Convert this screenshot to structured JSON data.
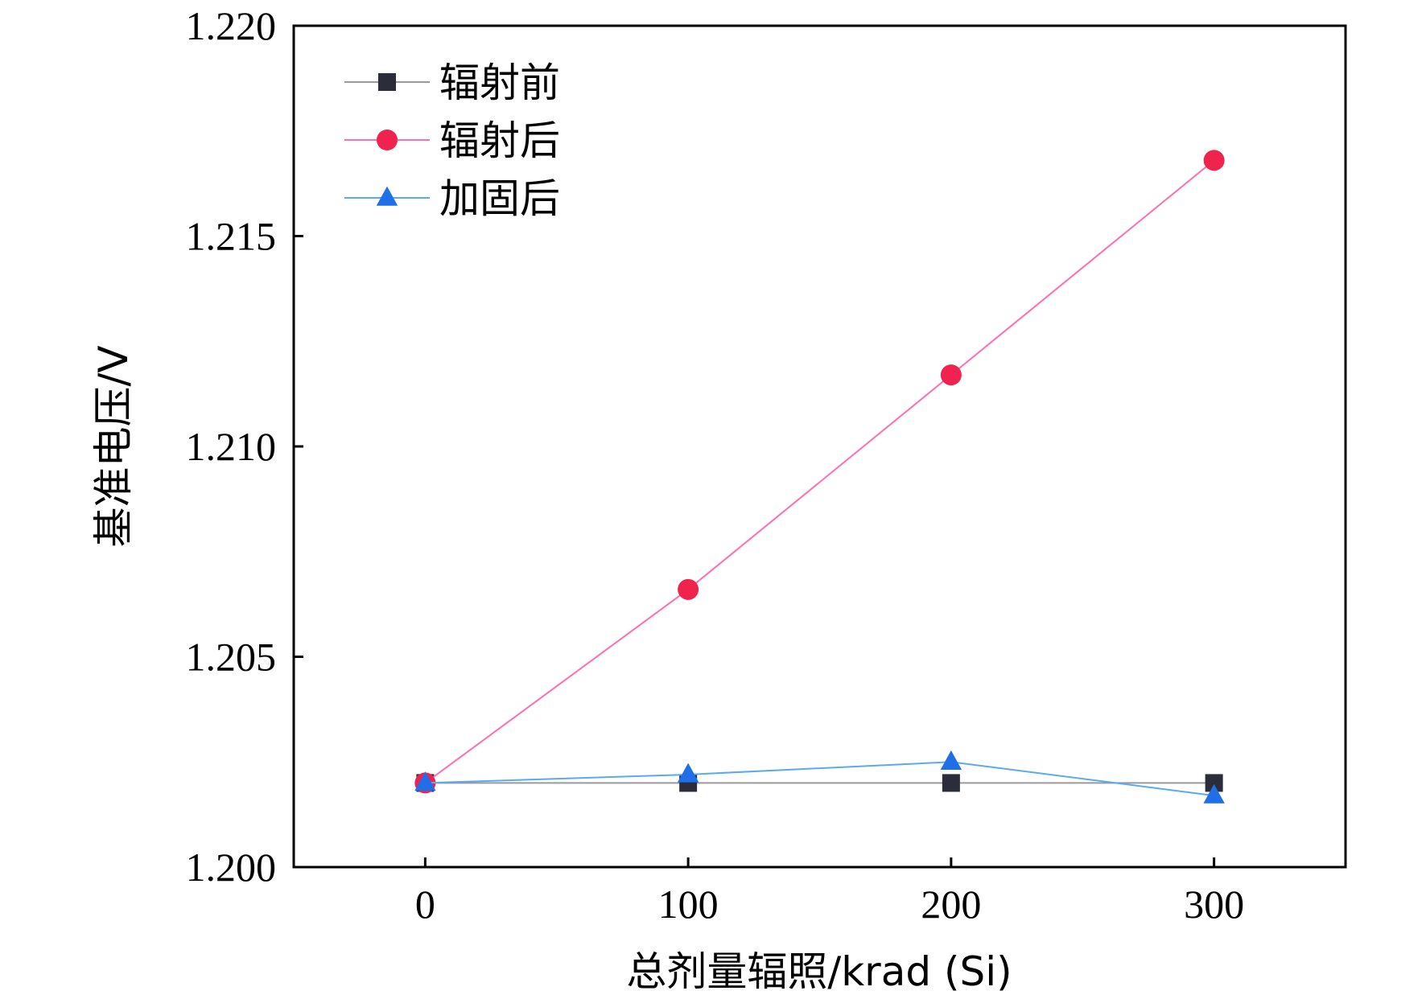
{
  "chart_data": {
    "type": "line",
    "title": "",
    "xlabel": "总剂量辐照/krad (Si)",
    "ylabel": "基准电压/V",
    "xlim": [
      -50,
      350
    ],
    "ylim": [
      1.2,
      1.22
    ],
    "xticks": [
      0,
      100,
      200,
      300
    ],
    "yticks": [
      1.2,
      1.205,
      1.21,
      1.215,
      1.22
    ],
    "x_tick_labels": [
      "0",
      "100",
      "200",
      "300"
    ],
    "y_tick_labels": [
      "1.200",
      "1.205",
      "1.210",
      "1.215",
      "1.220"
    ],
    "grid": false,
    "legend_position": "top-left",
    "series": [
      {
        "name": "辐射前",
        "marker": "square",
        "color": "#2b2d3a",
        "line_color": "#9a9a9a",
        "x": [
          0,
          100,
          200,
          300
        ],
        "y": [
          1.202,
          1.202,
          1.202,
          1.202
        ]
      },
      {
        "name": "辐射后",
        "marker": "circle",
        "color": "#f0234e",
        "line_color": "#ff6fae",
        "x": [
          0,
          100,
          200,
          300
        ],
        "y": [
          1.202,
          1.2066,
          1.2117,
          1.2168
        ]
      },
      {
        "name": "加固后",
        "marker": "triangle",
        "color": "#1f6fe8",
        "line_color": "#5aaaf0",
        "x": [
          0,
          100,
          200,
          300
        ],
        "y": [
          1.202,
          1.2022,
          1.2025,
          1.2017
        ]
      }
    ]
  }
}
